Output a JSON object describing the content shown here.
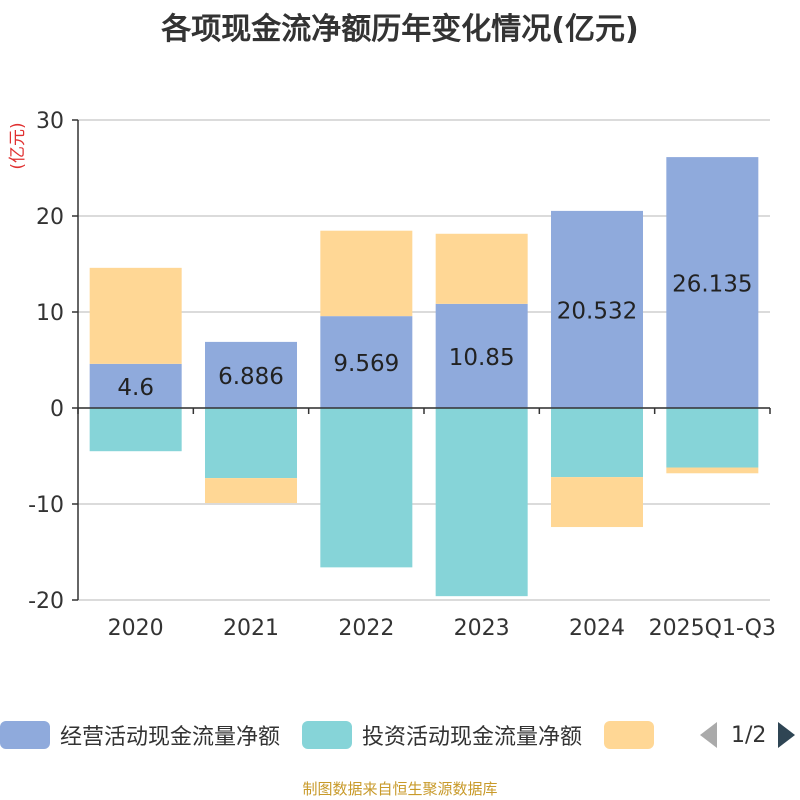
{
  "chart_data": {
    "type": "bar",
    "title": "各项现金流净额历年变化情况(亿元)",
    "ylabel": "(亿元)",
    "ylim": [
      -20,
      30
    ],
    "yticks": [
      30,
      20,
      10,
      0,
      -10,
      -20
    ],
    "categories": [
      "2020",
      "2021",
      "2022",
      "2023",
      "2024",
      "2025Q1-Q3"
    ],
    "series": [
      {
        "name": "经营活动现金流量净额",
        "color": "#8faadc",
        "values": [
          4.6,
          6.886,
          9.569,
          10.85,
          20.532,
          26.135
        ],
        "labels": [
          "4.6",
          "6.886",
          "9.569",
          "10.85",
          "20.532",
          "26.135"
        ]
      },
      {
        "name": "投资活动现金流量净额",
        "color": "#86d4d8",
        "values": [
          -4.5,
          -7.3,
          -16.6,
          -19.6,
          -7.2,
          -6.2
        ]
      },
      {
        "name": "",
        "color": "#ffd795",
        "values": [
          10.0,
          -2.6,
          8.9,
          7.3,
          -5.2,
          -0.6
        ]
      }
    ]
  },
  "legend": {
    "items": [
      {
        "label": "经营活动现金流量净额",
        "color": "#8faadc"
      },
      {
        "label": "投资活动现金流量净额",
        "color": "#86d4d8"
      },
      {
        "label": "",
        "color": "#ffd795"
      }
    ],
    "page": "1/2"
  },
  "footer": {
    "source": "制图数据来自恒生聚源数据库"
  }
}
